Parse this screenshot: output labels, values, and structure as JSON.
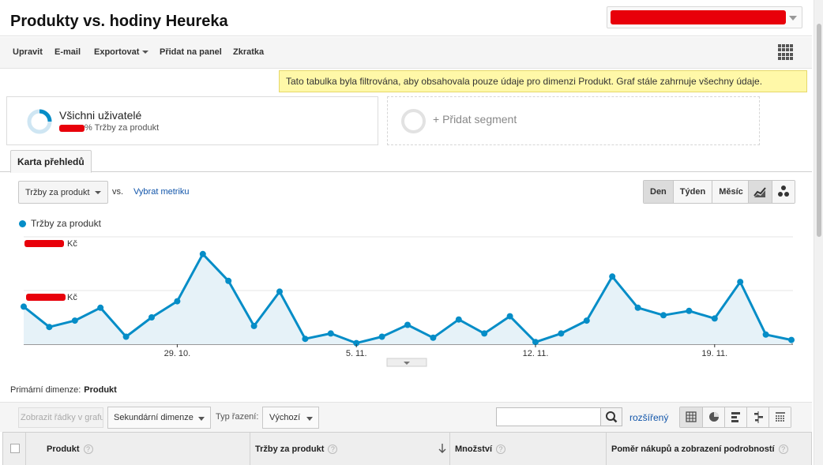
{
  "header": {
    "title": "Produkty vs. hodiny Heureka"
  },
  "toolbar": {
    "edit": "Upravit",
    "email": "E-mail",
    "export": "Exportovat",
    "add_to_dashboard": "Přidat na panel",
    "shortcut": "Zkratka"
  },
  "notice": "Tato tabulka byla filtrována, aby obsahovala pouze údaje pro dimenzi Produkt. Graf stále zahrnuje všechny údaje.",
  "segments": {
    "active_name": "Všichni uživatelé",
    "active_sub": "% Tržby za produkt",
    "add_label": "+ Přidat segment"
  },
  "tabs": {
    "active": "Karta přehledů"
  },
  "chart_controls": {
    "metric": "Tržby za produkt",
    "vs": "vs.",
    "pick_metric": "Vybrat metriku",
    "periods": [
      "Den",
      "Týden",
      "Měsíc"
    ],
    "selected_period": "Den"
  },
  "colors": {
    "series": "#058dc7",
    "area": "#e6f2f8",
    "redaction": "#e8000a"
  },
  "chart_data": {
    "type": "area",
    "legend": "Tržby za produkt",
    "y_unit": "Kč",
    "x_ticks": [
      "29. 10.",
      "5. 11.",
      "12. 11.",
      "19. 11."
    ],
    "x_tick_index": [
      6,
      13,
      20,
      27
    ],
    "y_fractions_of_upper_gridline": [
      0.35,
      0.16,
      0.22,
      0.34,
      0.07,
      0.25,
      0.4,
      0.84,
      0.59,
      0.17,
      0.49,
      0.05,
      0.1,
      0.01,
      0.07,
      0.18,
      0.06,
      0.23,
      0.1,
      0.26,
      0.02,
      0.1,
      0.22,
      0.63,
      0.34,
      0.27,
      0.31,
      0.24,
      0.58,
      0.09,
      0.04
    ],
    "grid": true
  },
  "primary_dimension": {
    "label": "Primární dimenze:",
    "value": "Produkt"
  },
  "table_controls": {
    "plot_rows": "Zobrazit řádky v grafu",
    "secondary_dimension": "Sekundární dimenze",
    "sort_label": "Typ řazení:",
    "sort_value": "Výchozí",
    "advanced": "rozšířený"
  },
  "table": {
    "columns": [
      "Produkt",
      "Tržby za produkt",
      "Množství",
      "Poměr nákupů a zobrazení podrobností"
    ]
  }
}
